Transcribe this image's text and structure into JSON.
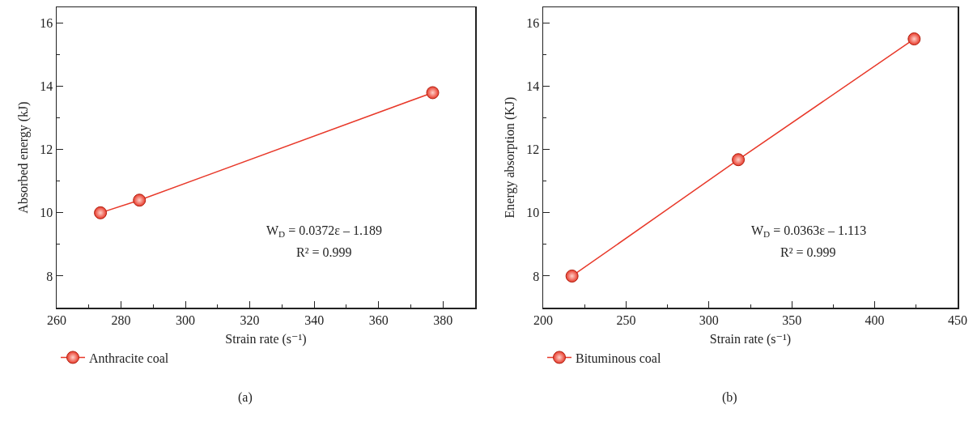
{
  "chart_data": [
    {
      "type": "line",
      "xlabel": "Strain rate (s⁻¹)",
      "ylabel": "Absorbed energy (kJ)",
      "x": [
        273.6,
        285.7,
        376.8
      ],
      "series": [
        {
          "name": "Anthracite coal",
          "color": "#e8392a",
          "values": [
            10.0,
            10.4,
            13.8
          ]
        }
      ],
      "xlim": [
        260,
        390
      ],
      "xticks": [
        260,
        280,
        300,
        320,
        340,
        360,
        380
      ],
      "ylim": [
        7,
        16.5
      ],
      "yticks": [
        8,
        10,
        12,
        14,
        16
      ],
      "marker": "circle",
      "line_style": "solid",
      "grid": false,
      "legend": "bottom",
      "annotations": [
        "W$_{D}$ = 0.0372ε – 1.189",
        "R² = 0.999",
        "(a)"
      ]
    },
    {
      "type": "line",
      "xlabel": "Strain rate (s⁻¹)",
      "ylabel": "Energy absorption (KJ)",
      "x": [
        217.4,
        317.7,
        423.8
      ],
      "series": [
        {
          "name": "Bituminous coal",
          "color": "#e8392a",
          "values": [
            8.0,
            11.68,
            15.5
          ]
        }
      ],
      "xlim": [
        200,
        450
      ],
      "xticks": [
        200,
        250,
        300,
        350,
        400,
        450
      ],
      "ylim": [
        7,
        16.5
      ],
      "yticks": [
        8,
        10,
        12,
        14,
        16
      ],
      "marker": "circle",
      "line_style": "solid",
      "grid": false,
      "legend": "bottom",
      "annotations": [
        "W$_{D}$ = 0.0363ε – 1.113",
        "R² = 0.999",
        "(b)"
      ]
    }
  ]
}
